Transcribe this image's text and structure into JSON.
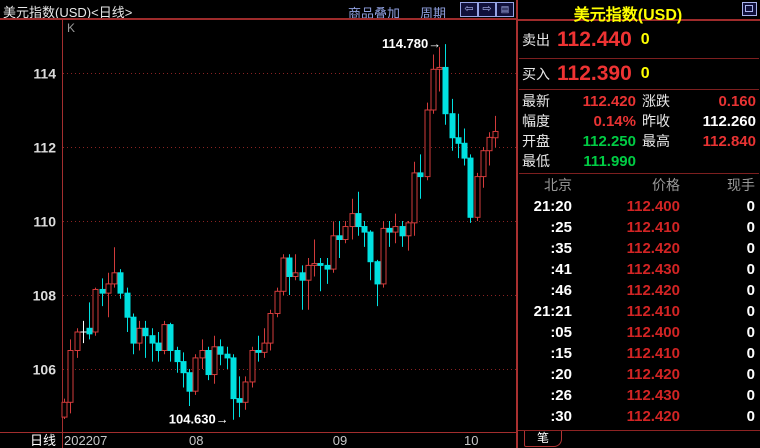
{
  "topbar": {
    "left_title": "美元指数(USD)<日线>",
    "menu_overlay": "商品叠加",
    "menu_period": "周期",
    "icons": {
      "prev": "⇦",
      "next": "⇨",
      "split": "▤"
    },
    "k_label": "K"
  },
  "panel": {
    "title": "美元指数(USD)",
    "sell_label": "卖出",
    "sell_price": "112.440",
    "sell_qty": "0",
    "buy_label": "买入",
    "buy_price": "112.390",
    "buy_qty": "0",
    "value_colors": {
      "red": "#e83333",
      "green": "#00cc44",
      "white": "#ffffff"
    },
    "stats": [
      {
        "label": "最新",
        "value": "112.420",
        "color": "red"
      },
      {
        "label": "涨跌",
        "value": "0.160",
        "color": "red"
      },
      {
        "label": "幅度",
        "value": "0.14%",
        "color": "red"
      },
      {
        "label": "昨收",
        "value": "112.260",
        "color": "white"
      },
      {
        "label": "开盘",
        "value": "112.250",
        "color": "green"
      },
      {
        "label": "最高",
        "value": "112.840",
        "color": "red"
      },
      {
        "label": "最低",
        "value": "111.990",
        "color": "green"
      }
    ],
    "table": {
      "headers": [
        "北京",
        "价格",
        "现手"
      ],
      "rows": [
        [
          "21:20",
          "112.400",
          "0"
        ],
        [
          ":25",
          "112.410",
          "0"
        ],
        [
          ":35",
          "112.420",
          "0"
        ],
        [
          ":41",
          "112.430",
          "0"
        ],
        [
          ":46",
          "112.420",
          "0"
        ],
        [
          "21:21",
          "112.410",
          "0"
        ],
        [
          ":05",
          "112.400",
          "0"
        ],
        [
          ":15",
          "112.410",
          "0"
        ],
        [
          ":20",
          "112.420",
          "0"
        ],
        [
          ":26",
          "112.430",
          "0"
        ],
        [
          ":30",
          "112.420",
          "0"
        ]
      ]
    },
    "tab_label": "笔"
  },
  "chart_data": {
    "type": "candlestick",
    "title": "美元指数(USD) 日线",
    "period_label": "日线",
    "high_annotation": "114.780",
    "low_annotation": "104.630",
    "y_ticks": [
      114,
      112,
      110,
      108,
      106
    ],
    "x_ticks": [
      {
        "label": "202207",
        "index": 0
      },
      {
        "label": "08",
        "index": 20
      },
      {
        "label": "09",
        "index": 43
      },
      {
        "label": "10",
        "index": 64
      }
    ],
    "ylim": [
      104.3,
      115.5
    ],
    "grid": "dashed-red-horizontal",
    "colors": {
      "up": "#d23b3b",
      "down": "#00e0e0",
      "doji": "#ffffff"
    },
    "candles": [
      [
        104.7,
        105.2,
        104.65,
        105.1
      ],
      [
        105.1,
        106.8,
        104.8,
        106.5
      ],
      [
        106.5,
        107.1,
        106.3,
        107.0
      ],
      [
        107.0,
        107.3,
        106.7,
        107.0
      ],
      [
        107.1,
        107.8,
        106.8,
        106.95
      ],
      [
        107.0,
        108.2,
        106.9,
        108.15
      ],
      [
        108.15,
        108.45,
        107.7,
        108.05
      ],
      [
        108.05,
        108.6,
        107.4,
        108.3
      ],
      [
        108.3,
        109.29,
        108.2,
        108.6
      ],
      [
        108.6,
        108.7,
        107.9,
        108.05
      ],
      [
        108.05,
        108.2,
        107.0,
        107.4
      ],
      [
        107.4,
        107.5,
        106.4,
        106.7
      ],
      [
        106.7,
        107.3,
        106.5,
        107.1
      ],
      [
        107.1,
        107.3,
        106.3,
        106.9
      ],
      [
        106.9,
        107.1,
        106.2,
        106.7
      ],
      [
        106.7,
        107.0,
        106.2,
        106.5
      ],
      [
        106.5,
        107.3,
        106.4,
        107.2
      ],
      [
        107.2,
        107.25,
        106.2,
        106.5
      ],
      [
        106.5,
        106.6,
        105.9,
        106.2
      ],
      [
        106.2,
        106.45,
        105.5,
        105.9
      ],
      [
        105.9,
        106.0,
        105.0,
        105.4
      ],
      [
        105.4,
        106.4,
        105.3,
        106.3
      ],
      [
        106.3,
        106.8,
        106.0,
        106.5
      ],
      [
        106.5,
        106.6,
        105.7,
        105.85
      ],
      [
        105.85,
        106.9,
        105.6,
        106.6
      ],
      [
        106.6,
        106.8,
        106.1,
        106.4
      ],
      [
        106.4,
        106.6,
        106.0,
        106.3
      ],
      [
        106.3,
        106.4,
        104.63,
        105.2
      ],
      [
        105.2,
        105.8,
        104.7,
        105.1
      ],
      [
        105.1,
        105.8,
        104.9,
        105.65
      ],
      [
        105.65,
        106.6,
        105.5,
        106.5
      ],
      [
        106.5,
        106.9,
        106.2,
        106.45
      ],
      [
        106.45,
        107.1,
        106.3,
        106.7
      ],
      [
        106.7,
        107.6,
        106.5,
        107.5
      ],
      [
        107.5,
        108.2,
        107.4,
        108.1
      ],
      [
        108.1,
        109.1,
        108.0,
        109.0
      ],
      [
        109.0,
        109.1,
        108.0,
        108.5
      ],
      [
        108.5,
        109.1,
        108.4,
        108.6
      ],
      [
        108.6,
        108.8,
        107.6,
        108.4
      ],
      [
        108.4,
        109.0,
        107.6,
        108.8
      ],
      [
        108.8,
        109.5,
        108.5,
        108.85
      ],
      [
        108.85,
        109.0,
        108.1,
        108.8
      ],
      [
        108.8,
        109.0,
        108.3,
        108.7
      ],
      [
        108.7,
        109.99,
        108.6,
        109.6
      ],
      [
        109.6,
        110.0,
        109.0,
        109.5
      ],
      [
        109.5,
        110.0,
        109.4,
        109.85
      ],
      [
        109.85,
        110.6,
        109.5,
        110.2
      ],
      [
        110.2,
        110.79,
        109.6,
        109.85
      ],
      [
        109.85,
        110.0,
        109.3,
        109.7
      ],
      [
        109.7,
        109.75,
        108.4,
        108.9
      ],
      [
        108.9,
        108.95,
        107.7,
        108.3
      ],
      [
        108.3,
        110.0,
        108.2,
        109.8
      ],
      [
        109.8,
        110.0,
        109.3,
        109.7
      ],
      [
        109.7,
        110.2,
        109.4,
        109.85
      ],
      [
        109.85,
        110.0,
        109.3,
        109.6
      ],
      [
        109.6,
        110.0,
        109.2,
        109.95
      ],
      [
        109.95,
        111.6,
        109.6,
        111.3
      ],
      [
        111.3,
        111.8,
        110.6,
        111.2
      ],
      [
        111.2,
        113.2,
        111.1,
        113.0
      ],
      [
        113.0,
        114.5,
        112.9,
        114.1
      ],
      [
        114.1,
        114.7,
        113.5,
        114.15
      ],
      [
        114.15,
        114.78,
        112.6,
        112.9
      ],
      [
        112.9,
        113.3,
        111.9,
        112.25
      ],
      [
        112.25,
        112.9,
        111.7,
        112.1
      ],
      [
        112.1,
        112.5,
        111.5,
        111.7
      ],
      [
        111.7,
        111.8,
        109.95,
        110.1
      ],
      [
        110.1,
        111.3,
        110.0,
        111.2
      ],
      [
        111.2,
        112.0,
        110.9,
        111.9
      ],
      [
        111.9,
        112.4,
        111.5,
        112.26
      ],
      [
        112.25,
        112.84,
        111.99,
        112.42
      ]
    ]
  }
}
